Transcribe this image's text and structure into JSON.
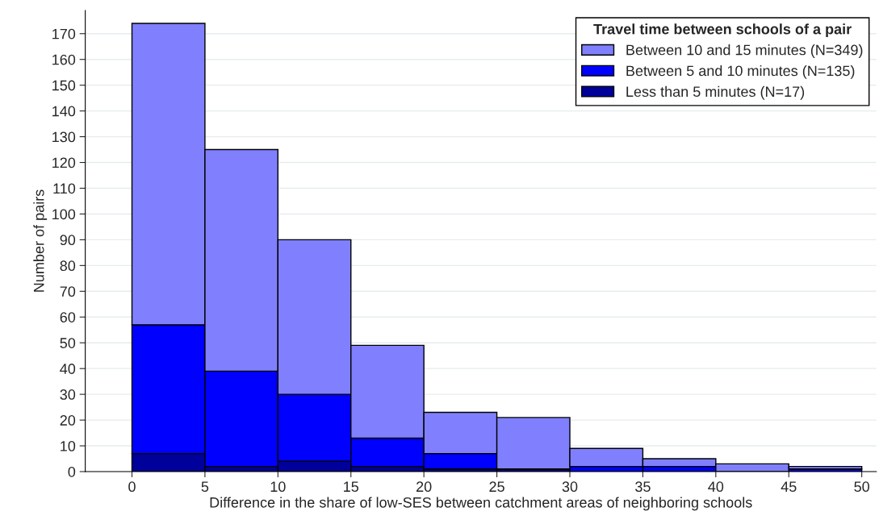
{
  "chart_data": {
    "type": "bar",
    "stacked": true,
    "xlabel": "Difference in the share of low-SES between catchment areas of neighboring schools",
    "ylabel": "Number of pairs",
    "legend_title": "Travel time between schools of a pair",
    "x": [
      2.5,
      7.5,
      12.5,
      17.5,
      22.5,
      27.5,
      32.5,
      37.5,
      42.5,
      47.5
    ],
    "series": [
      {
        "name": "Less than 5 minutes (N=17)",
        "color": "#00009b",
        "values": [
          7,
          2,
          4,
          2,
          1,
          1,
          0,
          0,
          0,
          0
        ]
      },
      {
        "name": "Between 5 and 10 minutes (N=135)",
        "color": "#0000ff",
        "values": [
          50,
          37,
          26,
          11,
          6,
          0,
          2,
          2,
          0,
          1
        ]
      },
      {
        "name": "Between 10 and 15 minutes (N=349)",
        "color": "#8080ff",
        "values": [
          117,
          86,
          60,
          36,
          16,
          20,
          7,
          3,
          3,
          1
        ]
      }
    ],
    "xlim": [
      -3.2,
      51
    ],
    "xticks": [
      0,
      5,
      10,
      15,
      20,
      25,
      30,
      35,
      40,
      45,
      50
    ],
    "ylim": [
      0,
      179
    ],
    "yticks": [
      0,
      10,
      20,
      30,
      40,
      50,
      60,
      70,
      80,
      90,
      100,
      110,
      120,
      130,
      140,
      150,
      160,
      170
    ],
    "grid": "y",
    "legend": "top right"
  }
}
